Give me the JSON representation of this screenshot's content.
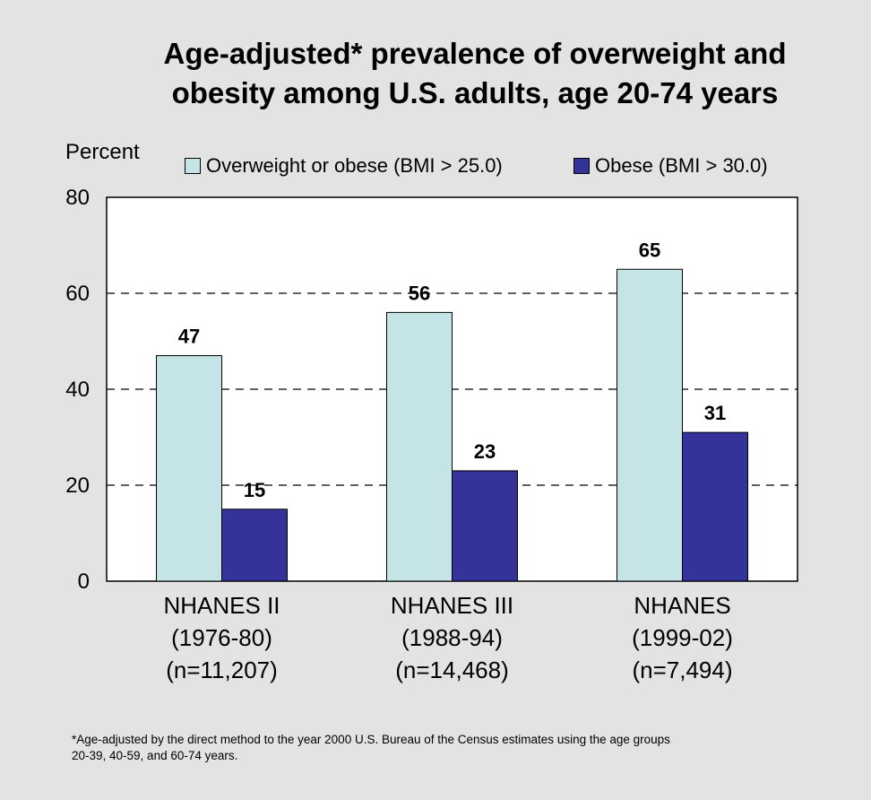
{
  "colors": {
    "background": "#e3e3e3",
    "plot_background": "#ffffff",
    "overweight": "#c5e4e6",
    "obese": "#333399"
  },
  "chart_data": {
    "type": "bar",
    "title": "Age-adjusted* prevalence of overweight and obesity among U.S. adults, age 20-74 years",
    "title_lines": [
      "Age-adjusted* prevalence of overweight and",
      "obesity among U.S. adults, age 20-74 years"
    ],
    "ylabel": "Percent",
    "ylim": [
      0,
      80
    ],
    "yticks": [
      0,
      20,
      40,
      60,
      80
    ],
    "grid": "dashed horizontal at 20, 40, 60",
    "legend_position": "top",
    "categories": [
      [
        "NHANES II",
        "(1976-80)",
        "(n=11,207)"
      ],
      [
        "NHANES III",
        "(1988-94)",
        "(n=14,468)"
      ],
      [
        "NHANES",
        "(1999-02)",
        "(n=7,494)"
      ]
    ],
    "series": [
      {
        "name": "Overweight or obese (BMI > 25.0)",
        "values": [
          47,
          56,
          65
        ],
        "color": "#c5e4e6"
      },
      {
        "name": "Obese (BMI > 30.0)",
        "values": [
          15,
          23,
          31
        ],
        "color": "#333399"
      }
    ]
  },
  "footnote": {
    "line1": "*Age-adjusted by the direct method to the year 2000 U.S. Bureau of the Census estimates using the age groups",
    "line2": "20-39, 40-59, and 60-74 years."
  }
}
